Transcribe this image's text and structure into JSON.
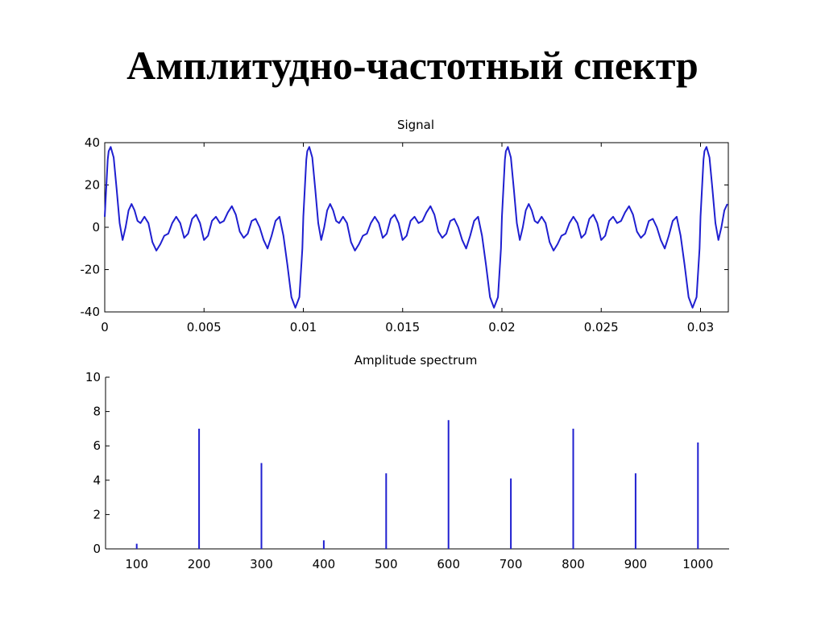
{
  "slide": {
    "title": "Амплитудно-частотный спектр"
  },
  "colors": {
    "series": "#1f1fd0",
    "axis": "#000000",
    "background": "#ffffff"
  },
  "chart_data": [
    {
      "type": "line",
      "title": "Signal",
      "xlabel": "",
      "ylabel": "",
      "xlim": [
        0,
        0.0314
      ],
      "ylim": [
        -40,
        40
      ],
      "xticks": [
        0,
        0.005,
        0.01,
        0.015,
        0.02,
        0.025,
        0.03
      ],
      "xtick_labels": [
        "0",
        "0.005",
        "0.01",
        "0.015",
        "0.02",
        "0.025",
        "0.03"
      ],
      "yticks": [
        -40,
        -20,
        0,
        20,
        40
      ],
      "ytick_labels": [
        "-40",
        "-20",
        "0",
        "20",
        "40"
      ],
      "grid": false,
      "series": [
        {
          "period": 0.01,
          "x": [
            0,
            0.00015,
            0.0002,
            0.0003,
            0.00045,
            0.0006,
            0.00075,
            0.0009,
            0.00105,
            0.0012,
            0.00135,
            0.0015,
            0.00165,
            0.0018,
            0.002,
            0.0022,
            0.0024,
            0.0026,
            0.0028,
            0.003,
            0.0032,
            0.0034,
            0.0036,
            0.0038,
            0.004,
            0.0042,
            0.0044,
            0.0046,
            0.0048,
            0.005,
            0.0052,
            0.0054,
            0.0056,
            0.0058,
            0.006,
            0.0062,
            0.0064,
            0.0066,
            0.0068,
            0.007,
            0.0072,
            0.0074,
            0.0076,
            0.0078,
            0.008,
            0.0082,
            0.0084,
            0.0086,
            0.0088,
            0.009,
            0.0092,
            0.0094,
            0.0096,
            0.0098,
            0.00995,
            0.01
          ],
          "y": [
            5,
            32,
            36,
            38,
            33,
            18,
            2,
            -6,
            0,
            8,
            11,
            8,
            3,
            2,
            5,
            2,
            -7,
            -11,
            -8,
            -4,
            -3,
            2,
            5,
            2,
            -5,
            -3,
            4,
            6,
            2,
            -6,
            -4,
            3,
            5,
            2,
            3,
            7,
            10,
            6,
            -2,
            -5,
            -3,
            3,
            4,
            0,
            -6,
            -10,
            -4,
            3,
            5,
            -4,
            -18,
            -33,
            -38,
            -33,
            -10,
            5
          ]
        }
      ]
    },
    {
      "type": "bar",
      "title": "Amplitude spectrum",
      "xlabel": "",
      "ylabel": "",
      "categories": [
        "100",
        "200",
        "300",
        "400",
        "500",
        "600",
        "700",
        "800",
        "900",
        "1000"
      ],
      "x": [
        100,
        200,
        300,
        400,
        500,
        600,
        700,
        800,
        900,
        1000
      ],
      "values": [
        0.3,
        7,
        5,
        0.5,
        4.4,
        7.5,
        4.1,
        7,
        4.4,
        6.2
      ],
      "xlim": [
        50,
        1050
      ],
      "ylim": [
        0,
        10
      ],
      "yticks": [
        0,
        2,
        4,
        6,
        8,
        10
      ],
      "ytick_labels": [
        "0",
        "2",
        "4",
        "6",
        "8",
        "10"
      ],
      "grid": false
    }
  ]
}
